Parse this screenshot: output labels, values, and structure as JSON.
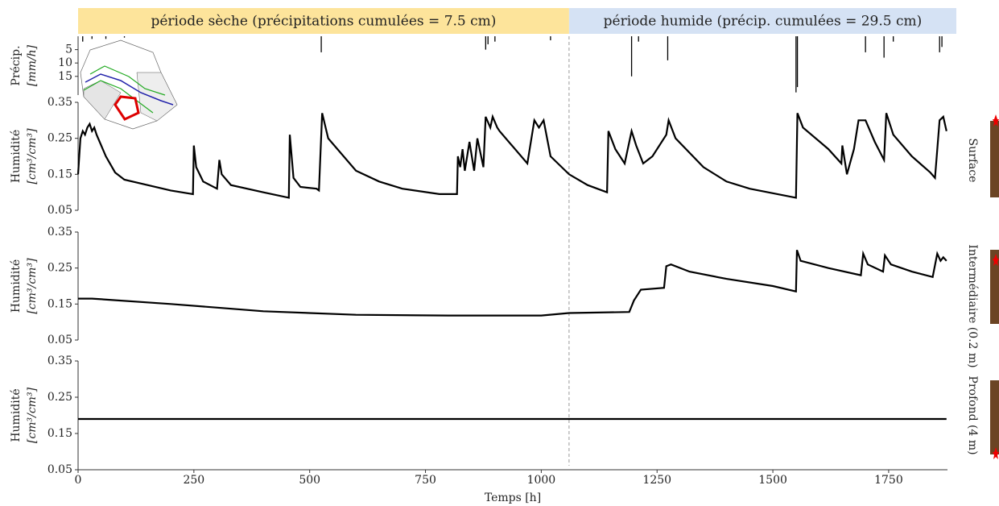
{
  "chart_data": [
    {
      "type": "bar",
      "ylabel": [
        "Précip.",
        "[mm/h]"
      ],
      "inverted": true,
      "annotations": [
        "période sèche (précipitations cumulées = 7.5 cm)",
        "période humide (précip. cumulées = 29.5 cm)"
      ],
      "vlines": [
        1060
      ],
      "color": "#000000",
      "x": [
        10,
        30,
        60,
        100,
        525,
        880,
        885,
        900,
        1020,
        1195,
        1210,
        1273,
        1550,
        1553,
        1700,
        1740,
        1760,
        1860,
        1865
      ],
      "values": [
        2,
        1,
        1,
        0.5,
        6,
        5,
        3,
        2,
        1.5,
        15,
        2,
        9,
        21,
        19,
        6,
        8,
        2,
        6,
        4
      ],
      "xlim": [
        0,
        1877
      ],
      "ylim": [
        0,
        22
      ],
      "yticks": [
        5,
        10,
        15
      ]
    },
    {
      "type": "line",
      "ylabel": [
        "Humidité",
        "[cm³/cm³]"
      ],
      "side_label": "Surface",
      "color": "#000000",
      "x": [
        0,
        5,
        10,
        15,
        20,
        25,
        30,
        35,
        40,
        60,
        80,
        100,
        150,
        200,
        248,
        250,
        255,
        270,
        300,
        305,
        310,
        330,
        400,
        455,
        457,
        465,
        480,
        515,
        520,
        527,
        540,
        600,
        650,
        700,
        780,
        818,
        820,
        825,
        830,
        835,
        845,
        855,
        862,
        875,
        880,
        890,
        895,
        905,
        910,
        970,
        985,
        995,
        1005,
        1020,
        1060,
        1100,
        1142,
        1145,
        1160,
        1180,
        1195,
        1205,
        1220,
        1240,
        1270,
        1275,
        1290,
        1350,
        1400,
        1450,
        1550,
        1553,
        1565,
        1620,
        1648,
        1650,
        1660,
        1675,
        1685,
        1700,
        1720,
        1740,
        1745,
        1760,
        1800,
        1840,
        1850,
        1860,
        1868,
        1875
      ],
      "values": [
        0.15,
        0.25,
        0.27,
        0.26,
        0.28,
        0.29,
        0.27,
        0.28,
        0.26,
        0.2,
        0.155,
        0.135,
        0.12,
        0.105,
        0.095,
        0.23,
        0.17,
        0.13,
        0.11,
        0.19,
        0.15,
        0.12,
        0.1,
        0.085,
        0.26,
        0.14,
        0.115,
        0.11,
        0.105,
        0.32,
        0.25,
        0.16,
        0.13,
        0.11,
        0.095,
        0.095,
        0.2,
        0.17,
        0.22,
        0.16,
        0.24,
        0.16,
        0.25,
        0.17,
        0.31,
        0.28,
        0.31,
        0.28,
        0.27,
        0.18,
        0.3,
        0.28,
        0.3,
        0.2,
        0.15,
        0.12,
        0.1,
        0.27,
        0.22,
        0.18,
        0.27,
        0.23,
        0.18,
        0.2,
        0.26,
        0.3,
        0.25,
        0.17,
        0.13,
        0.11,
        0.085,
        0.32,
        0.28,
        0.22,
        0.18,
        0.23,
        0.15,
        0.22,
        0.3,
        0.3,
        0.24,
        0.19,
        0.32,
        0.26,
        0.2,
        0.155,
        0.14,
        0.3,
        0.31,
        0.27
      ],
      "xlim": [
        0,
        1877
      ],
      "ylim": [
        0.05,
        0.35
      ],
      "yticks": [
        0.05,
        0.15,
        0.25,
        0.35
      ]
    },
    {
      "type": "line",
      "ylabel": [
        "Humidité",
        "[cm³/cm³]"
      ],
      "side_label": "Intermédiaire (0.2 m)",
      "color": "#000000",
      "x": [
        0,
        30,
        200,
        400,
        600,
        800,
        1000,
        1060,
        1190,
        1200,
        1215,
        1265,
        1270,
        1280,
        1320,
        1400,
        1500,
        1550,
        1552,
        1560,
        1620,
        1690,
        1695,
        1705,
        1738,
        1742,
        1755,
        1800,
        1845,
        1855,
        1862,
        1868,
        1875
      ],
      "values": [
        0.165,
        0.165,
        0.15,
        0.13,
        0.12,
        0.118,
        0.118,
        0.125,
        0.128,
        0.16,
        0.19,
        0.195,
        0.255,
        0.26,
        0.24,
        0.22,
        0.2,
        0.185,
        0.3,
        0.27,
        0.25,
        0.23,
        0.29,
        0.26,
        0.24,
        0.285,
        0.26,
        0.24,
        0.225,
        0.29,
        0.27,
        0.28,
        0.27
      ],
      "xlim": [
        0,
        1877
      ],
      "ylim": [
        0.05,
        0.35
      ],
      "yticks": [
        0.05,
        0.15,
        0.25,
        0.35
      ]
    },
    {
      "type": "line",
      "ylabel": [
        "Humidité",
        "[cm³/cm³]"
      ],
      "side_label": "Profond (4 m)",
      "xlabel": "Temps [h]",
      "color": "#000000",
      "x": [
        0,
        1875
      ],
      "values": [
        0.19,
        0.19
      ],
      "xlim": [
        0,
        1877
      ],
      "ylim": [
        0.05,
        0.35
      ],
      "yticks": [
        0.05,
        0.15,
        0.25,
        0.35
      ],
      "xticks": [
        0,
        250,
        500,
        750,
        1000,
        1250,
        1500,
        1750
      ]
    }
  ]
}
